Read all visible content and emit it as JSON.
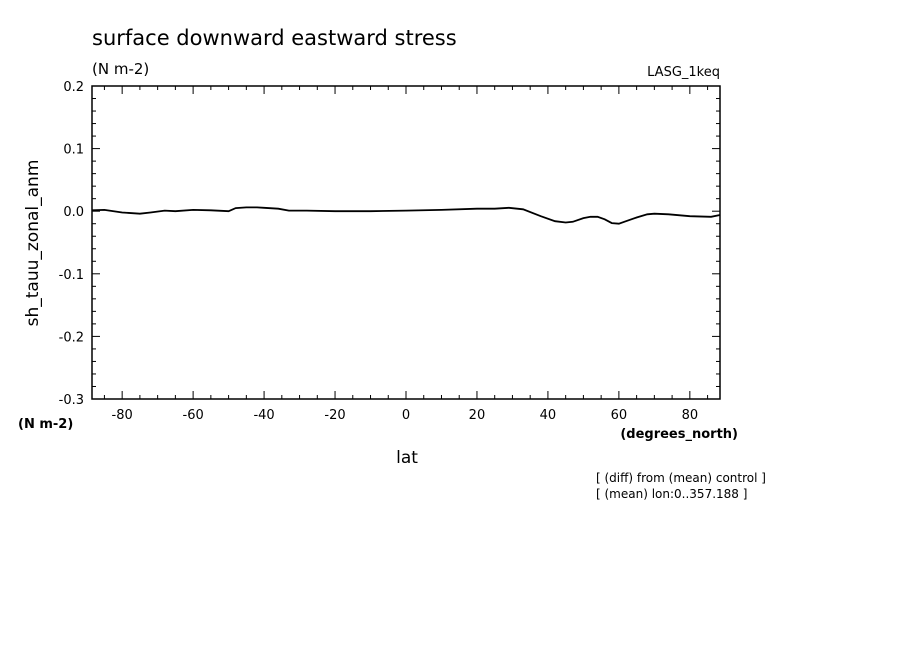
{
  "chart_data": {
    "type": "line",
    "title": "surface downward eastward stress",
    "subtitle": "(N m-2)",
    "dataset_label": "LASG_1keq",
    "xlabel": "lat",
    "x_units": "(degrees_north)",
    "ylabel": "sh_tauu_zonal_anm",
    "y_units": "(N m-2)",
    "xlim": [
      -88.5,
      88.5
    ],
    "ylim": [
      -0.3,
      0.2
    ],
    "x_ticks": [
      -80,
      -60,
      -40,
      -20,
      0,
      20,
      40,
      60,
      80
    ],
    "x_tick_labels": [
      "-80",
      "-60",
      "-40",
      "-20",
      "0",
      "20",
      "40",
      "60",
      "80"
    ],
    "y_ticks": [
      -0.3,
      -0.2,
      -0.1,
      0.0,
      0.1,
      0.2
    ],
    "y_tick_labels": [
      "-0.3",
      "-0.2",
      "-0.1",
      "0.0",
      "0.1",
      "0.2"
    ],
    "grid": false,
    "line_color": "#000000",
    "notes": [
      "[ (diff) from (mean) control ]",
      "[ (mean) lon:0..357.188 ]"
    ],
    "series": [
      {
        "x": [
          -88.5,
          -85,
          -80,
          -75,
          -72,
          -68,
          -65,
          -60,
          -55,
          -50,
          -48,
          -45,
          -42,
          -40,
          -36,
          -33,
          -28,
          -20,
          -10,
          0,
          10,
          20,
          25,
          29,
          33,
          38,
          42,
          45,
          47,
          50,
          52,
          54,
          56,
          58,
          60,
          62,
          65,
          68,
          70,
          74,
          80,
          86,
          88.5
        ],
        "y": [
          0.0015,
          0.002,
          -0.002,
          -0.004,
          -0.002,
          0.001,
          0.0,
          0.002,
          0.0015,
          0.0,
          0.005,
          0.006,
          0.006,
          0.0055,
          0.004,
          0.001,
          0.001,
          0.0,
          0.0,
          0.001,
          0.002,
          0.004,
          0.004,
          0.0055,
          0.003,
          -0.008,
          -0.016,
          -0.018,
          -0.017,
          -0.011,
          -0.009,
          -0.009,
          -0.013,
          -0.019,
          -0.02,
          -0.016,
          -0.01,
          -0.005,
          -0.004,
          -0.005,
          -0.008,
          -0.009,
          -0.006
        ]
      }
    ]
  }
}
